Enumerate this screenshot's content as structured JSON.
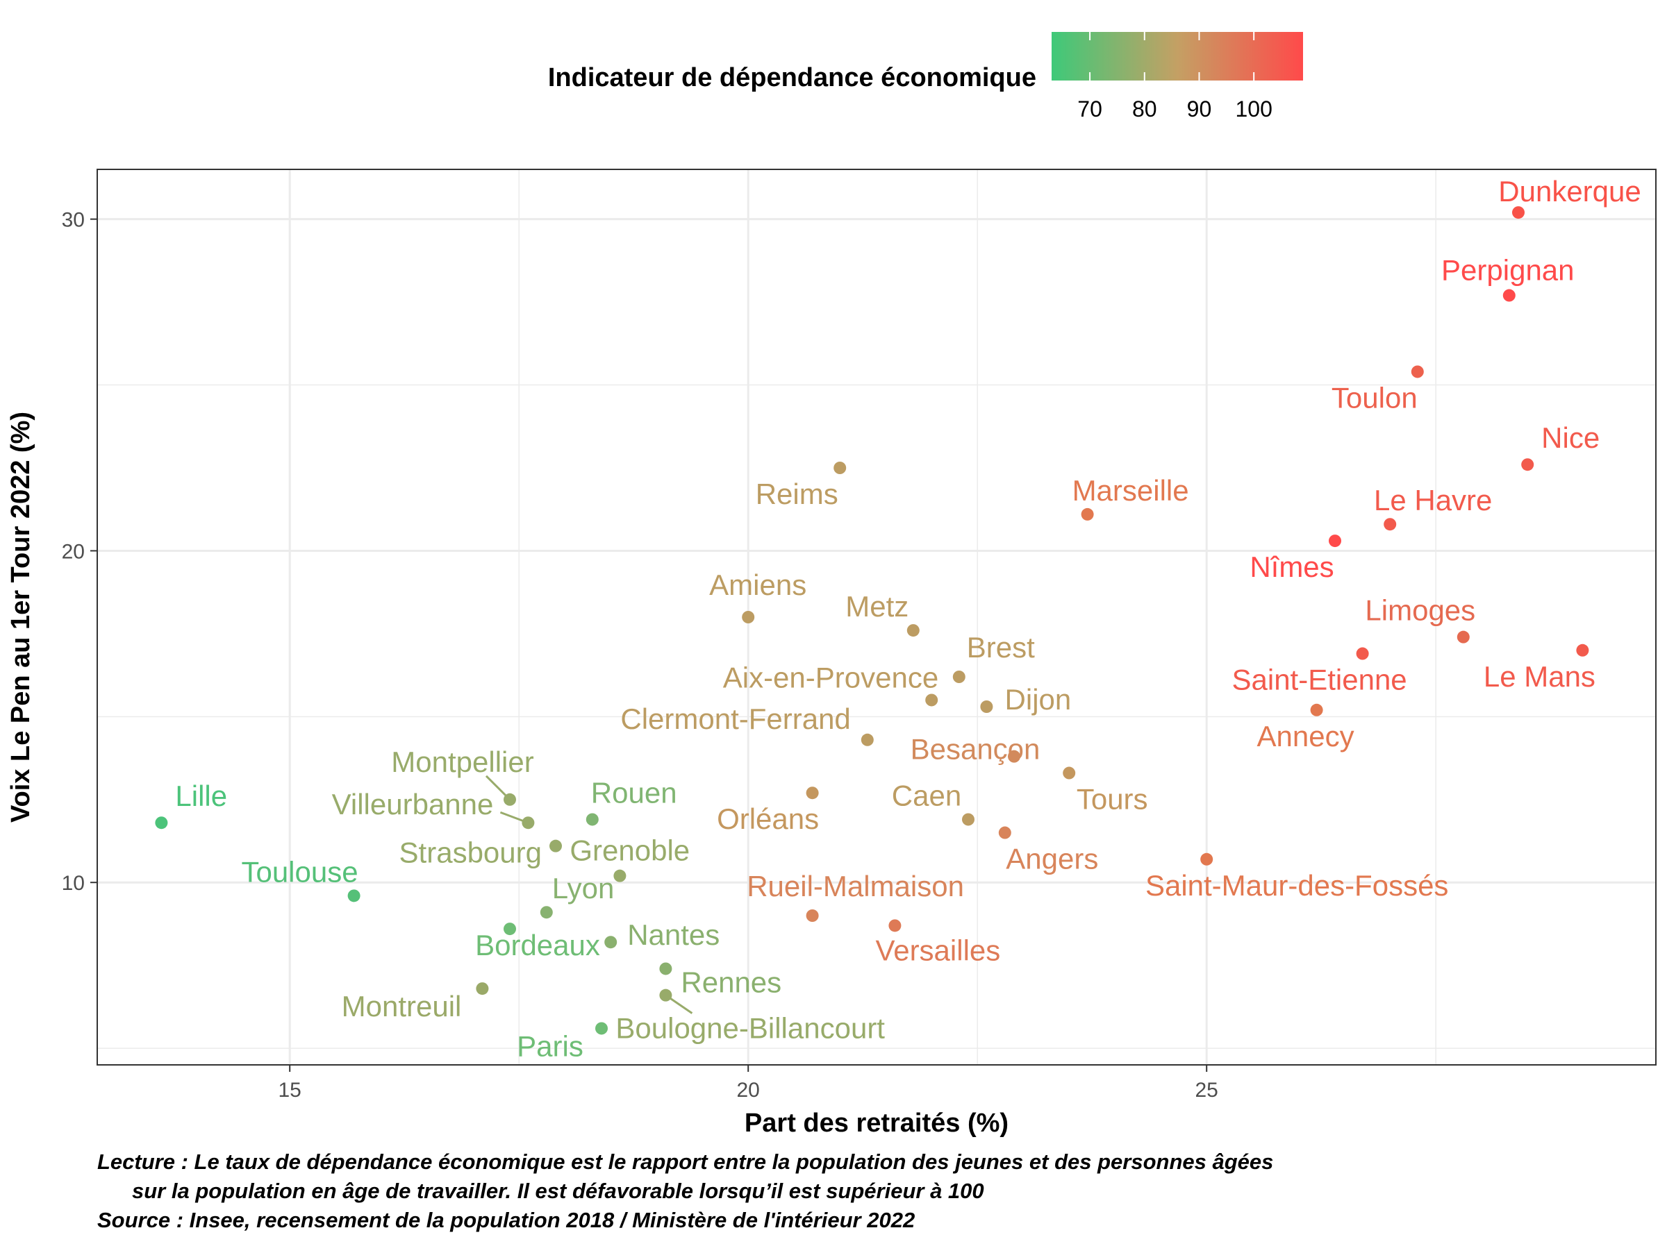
{
  "chart_data": {
    "type": "scatter",
    "xlabel": "Part des retraités (%)",
    "ylabel": "Voix Le Pen au 1er Tour 2022 (%)",
    "xlim": [
      12.9,
      29.9
    ],
    "ylim": [
      4.5,
      31.5
    ],
    "xticks": [
      15,
      20,
      25
    ],
    "yticks": [
      10,
      20,
      30
    ],
    "grid": true,
    "legend": {
      "title": "Indicateur de dépendance économique",
      "position": "top",
      "type": "colorbar",
      "range": [
        63,
        109
      ],
      "ticks": [
        70,
        80,
        90,
        100
      ],
      "colors": [
        "#3ec979",
        "#c4a064",
        "#ff4a4a"
      ]
    },
    "points": [
      {
        "name": "Lille",
        "x": 13.6,
        "y": 11.8,
        "color": "#4cc37a"
      },
      {
        "name": "Toulouse",
        "x": 15.7,
        "y": 9.6,
        "color": "#55c078"
      },
      {
        "name": "Bordeaux",
        "x": 17.4,
        "y": 8.6,
        "color": "#6ebd75"
      },
      {
        "name": "Montreuil",
        "x": 17.1,
        "y": 6.8,
        "color": "#9aa968"
      },
      {
        "name": "Montpellier",
        "x": 17.4,
        "y": 12.5,
        "color": "#98ab6a"
      },
      {
        "name": "Villeurbanne",
        "x": 17.6,
        "y": 11.8,
        "color": "#98ab6a"
      },
      {
        "name": "Strasbourg",
        "x": 17.9,
        "y": 11.1,
        "color": "#98ab6a"
      },
      {
        "name": "Lyon",
        "x": 17.8,
        "y": 9.1,
        "color": "#88b270"
      },
      {
        "name": "Rouen",
        "x": 18.3,
        "y": 11.9,
        "color": "#80b572"
      },
      {
        "name": "Grenoble",
        "x": 18.6,
        "y": 10.2,
        "color": "#98ab6a"
      },
      {
        "name": "Nantes",
        "x": 18.5,
        "y": 8.2,
        "color": "#8ab06e"
      },
      {
        "name": "Paris",
        "x": 18.4,
        "y": 5.6,
        "color": "#6ebd75"
      },
      {
        "name": "Rennes",
        "x": 19.1,
        "y": 7.4,
        "color": "#8ab06e"
      },
      {
        "name": "Boulogne-Billancourt",
        "x": 19.1,
        "y": 6.6,
        "color": "#98ab6a"
      },
      {
        "name": "Amiens",
        "x": 20.0,
        "y": 18.0,
        "color": "#bc9c62"
      },
      {
        "name": "Reims",
        "x": 21.0,
        "y": 22.5,
        "color": "#bc9c62"
      },
      {
        "name": "Orléans",
        "x": 20.7,
        "y": 12.7,
        "color": "#c4975e"
      },
      {
        "name": "Rueil-Malmaison",
        "x": 20.7,
        "y": 9.0,
        "color": "#d8845a"
      },
      {
        "name": "Clermont-Ferrand",
        "x": 21.3,
        "y": 14.3,
        "color": "#bc9c62"
      },
      {
        "name": "Versailles",
        "x": 21.6,
        "y": 8.7,
        "color": "#de7a56"
      },
      {
        "name": "Metz",
        "x": 21.8,
        "y": 17.6,
        "color": "#bc9c62"
      },
      {
        "name": "Aix-en-Provence",
        "x": 22.0,
        "y": 15.5,
        "color": "#bc9c62"
      },
      {
        "name": "Brest",
        "x": 22.3,
        "y": 16.2,
        "color": "#bc9c62"
      },
      {
        "name": "Caen",
        "x": 22.4,
        "y": 11.9,
        "color": "#bc9c62"
      },
      {
        "name": "Dijon",
        "x": 22.6,
        "y": 15.3,
        "color": "#bc9c62"
      },
      {
        "name": "Angers",
        "x": 22.8,
        "y": 11.5,
        "color": "#d8845a"
      },
      {
        "name": "Besançon",
        "x": 22.9,
        "y": 13.8,
        "color": "#d28a5c"
      },
      {
        "name": "Tours",
        "x": 23.5,
        "y": 13.3,
        "color": "#c4975e"
      },
      {
        "name": "Marseille",
        "x": 23.7,
        "y": 21.1,
        "color": "#e2784f"
      },
      {
        "name": "Saint-Maur-des-Fossés",
        "x": 25.0,
        "y": 10.7,
        "color": "#e2784f"
      },
      {
        "name": "Annecy",
        "x": 26.2,
        "y": 15.2,
        "color": "#e2784f"
      },
      {
        "name": "Nîmes",
        "x": 26.4,
        "y": 20.3,
        "color": "#ff4a4a"
      },
      {
        "name": "Saint-Etienne",
        "x": 26.7,
        "y": 16.9,
        "color": "#f25a4c"
      },
      {
        "name": "Le Havre",
        "x": 27.0,
        "y": 20.8,
        "color": "#f25a4c"
      },
      {
        "name": "Toulon",
        "x": 27.3,
        "y": 25.4,
        "color": "#ed614d"
      },
      {
        "name": "Limoges",
        "x": 27.8,
        "y": 17.4,
        "color": "#e56a50"
      },
      {
        "name": "Perpignan",
        "x": 28.3,
        "y": 27.7,
        "color": "#ff4a4a"
      },
      {
        "name": "Dunkerque",
        "x": 28.4,
        "y": 30.2,
        "color": "#f85248"
      },
      {
        "name": "Nice",
        "x": 28.5,
        "y": 22.6,
        "color": "#f25a4c"
      },
      {
        "name": "Le Mans",
        "x": 29.1,
        "y": 17.0,
        "color": "#f25a4c"
      }
    ]
  },
  "notes": {
    "line1": "Lecture : Le taux de dépendance économique est le rapport entre la population des jeunes et des personnes âgées",
    "line2": "sur la population en âge de travailler. Il est défavorable lorsqu’il est supérieur à 100",
    "line3": "Source : Insee, recensement de la population 2018 / Ministère de l'intérieur 2022"
  }
}
